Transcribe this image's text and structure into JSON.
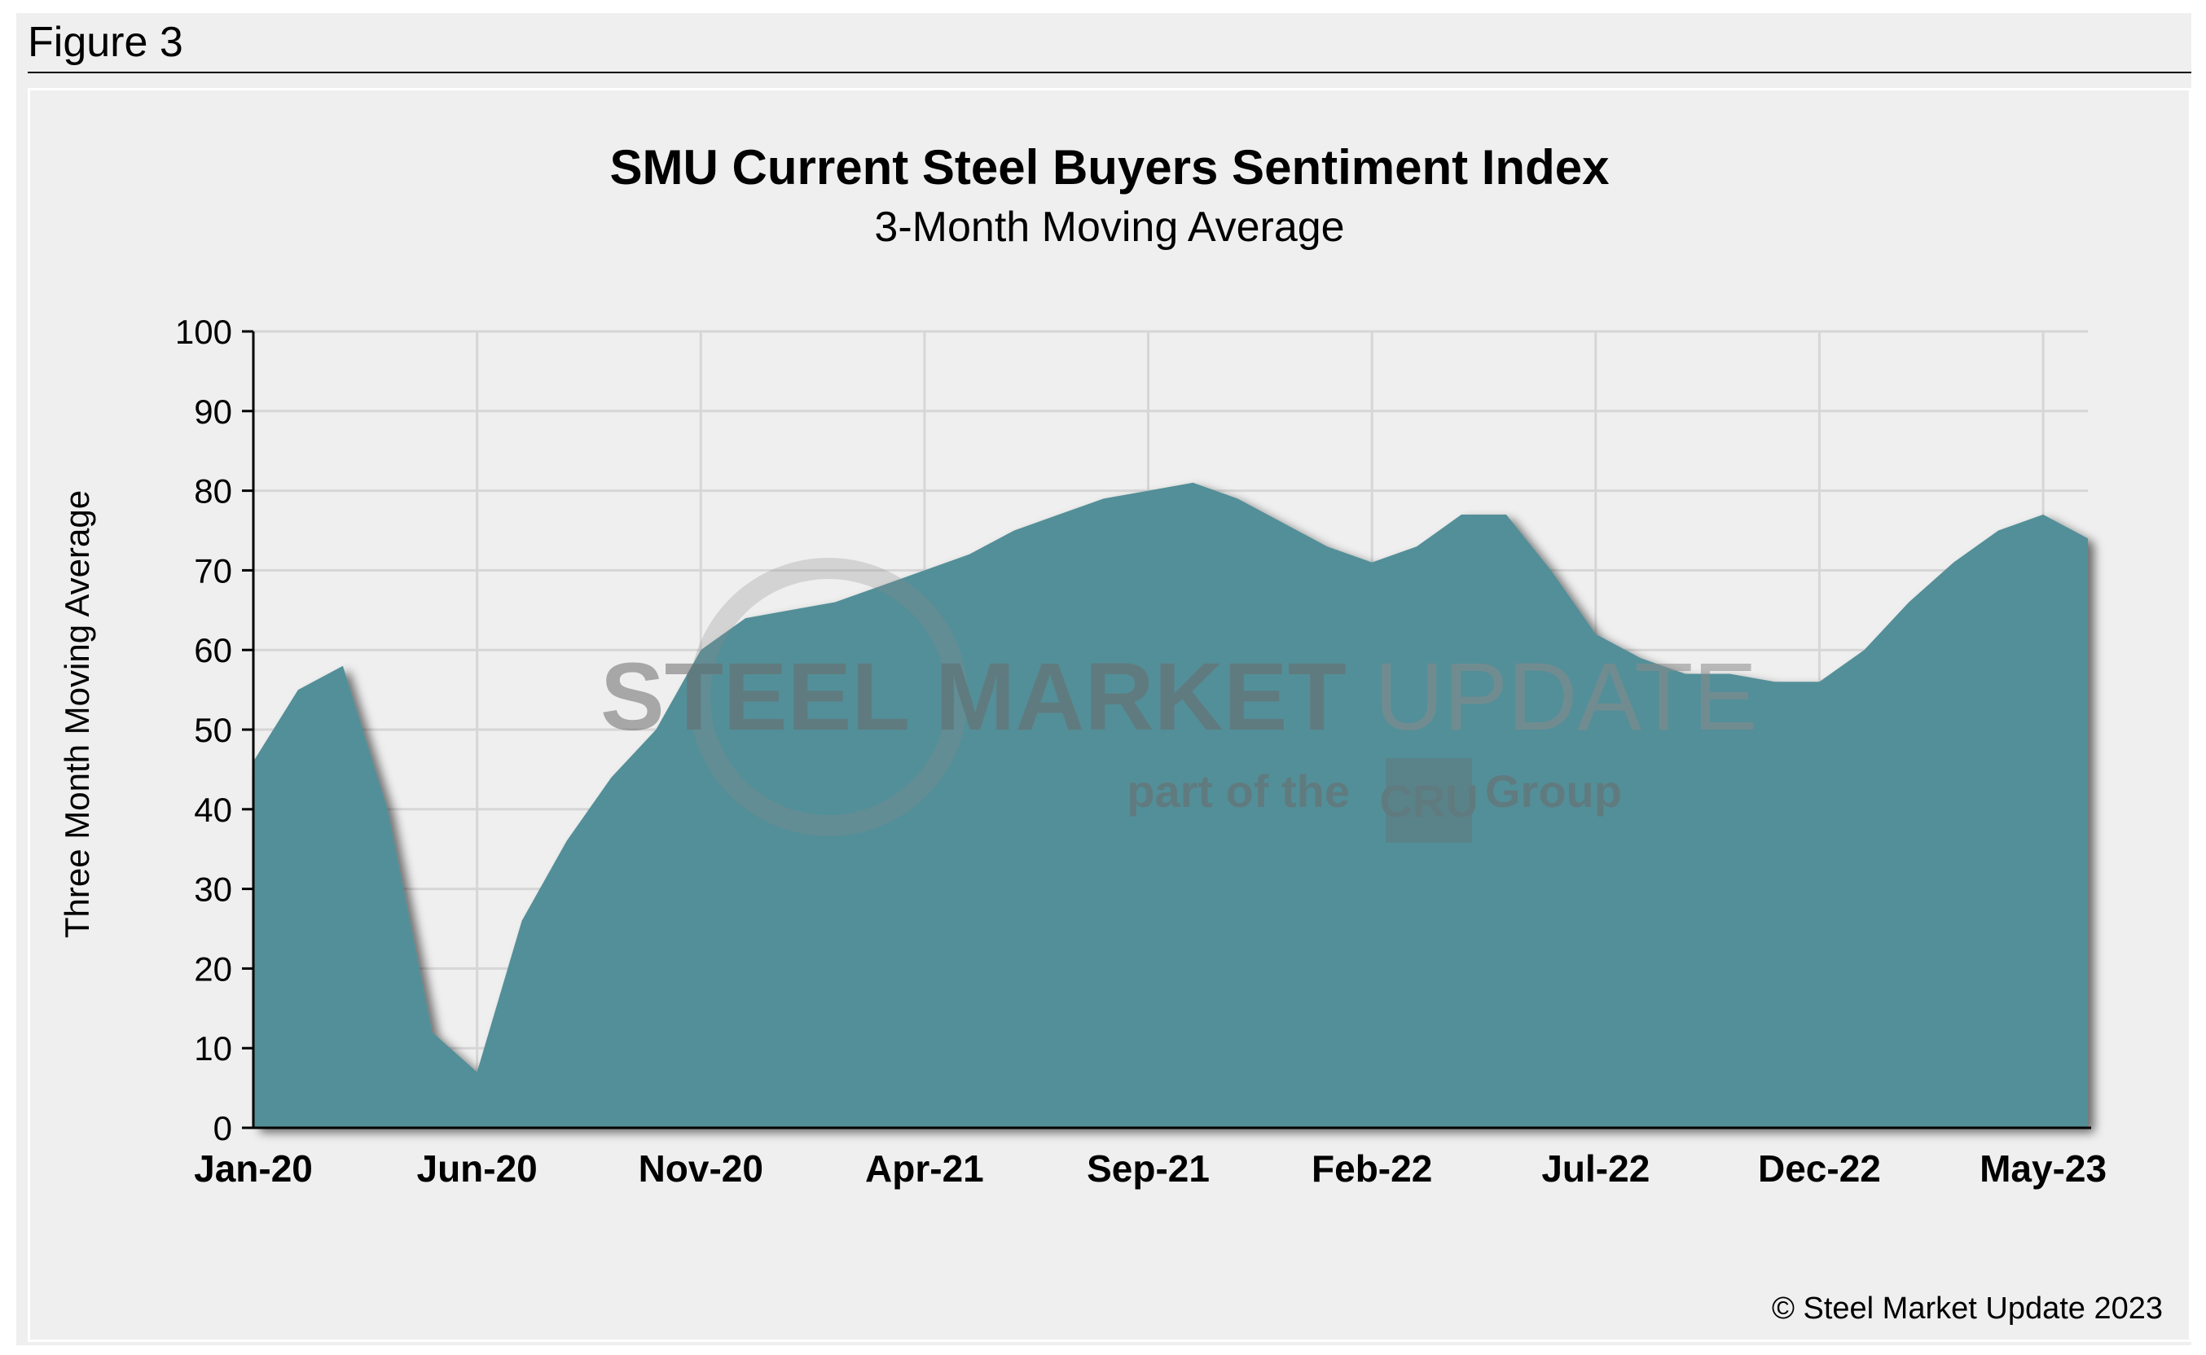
{
  "figure_label": "Figure 3",
  "copyright": "© Steel Market Update 2023",
  "watermark": {
    "line1_bold": "STEEL MARKET",
    "line1_light": "UPDATE",
    "line2_pre": "part of the",
    "line2_logo": "CRU",
    "line2_post": "Group"
  },
  "colors": {
    "area_fill": "#538f98",
    "shadow": "#3a3a3a",
    "grid": "#d6d6d6",
    "background": "#efefef"
  },
  "chart_data": {
    "type": "area",
    "title": "SMU Current Steel Buyers Sentiment Index",
    "subtitle": "3-Month Moving Average",
    "ylabel": "Three Month Moving Average",
    "xlabel": "",
    "ylim": [
      0,
      100
    ],
    "yticks": [
      0,
      10,
      20,
      30,
      40,
      50,
      60,
      70,
      80,
      90,
      100
    ],
    "xticks": [
      "Jan-20",
      "Jun-20",
      "Nov-20",
      "Apr-21",
      "Sep-21",
      "Feb-22",
      "Jul-22",
      "Dec-22",
      "May-23"
    ],
    "x_start": "Jan-20",
    "x_end": "Jun-23",
    "grid": true,
    "legend": "none",
    "series": [
      {
        "months": [
          "Jan-20",
          "Feb-20",
          "Mar-20",
          "Apr-20",
          "May-20",
          "Jun-20",
          "Jul-20",
          "Aug-20",
          "Sep-20",
          "Oct-20",
          "Nov-20",
          "Dec-20",
          "Jan-21",
          "Feb-21",
          "Mar-21",
          "Apr-21",
          "May-21",
          "Jun-21",
          "Jul-21",
          "Aug-21",
          "Sep-21",
          "Oct-21",
          "Nov-21",
          "Dec-21",
          "Jan-22",
          "Feb-22",
          "Mar-22",
          "Apr-22",
          "May-22",
          "Jun-22",
          "Jul-22",
          "Aug-22",
          "Sep-22",
          "Oct-22",
          "Nov-22",
          "Dec-22",
          "Jan-23",
          "Feb-23",
          "Mar-23",
          "Apr-23",
          "May-23",
          "Jun-23"
        ],
        "values": [
          46,
          55,
          58,
          40,
          12,
          7,
          26,
          36,
          44,
          50,
          60,
          64,
          65,
          66,
          68,
          70,
          72,
          75,
          77,
          79,
          80,
          81,
          79,
          76,
          73,
          71,
          73,
          77,
          77,
          70,
          62,
          59,
          57,
          57,
          56,
          56,
          60,
          66,
          71,
          75,
          77,
          74
        ]
      }
    ]
  }
}
